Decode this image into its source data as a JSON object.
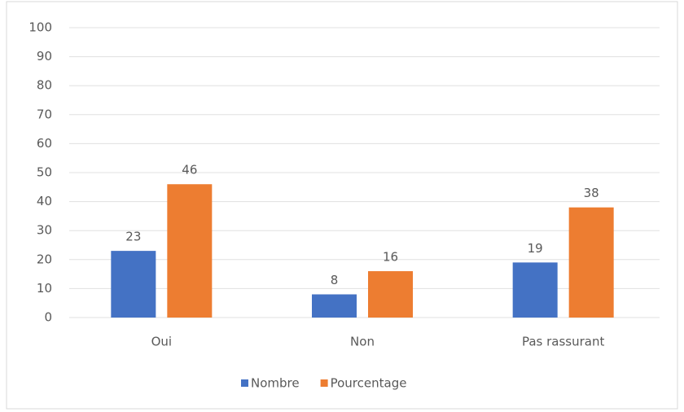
{
  "chart_data": {
    "type": "bar",
    "categories": [
      "Oui",
      "Non",
      "Pas rassurant"
    ],
    "series": [
      {
        "name": "Nombre",
        "color": "#4472c4",
        "values": [
          23,
          8,
          19
        ]
      },
      {
        "name": "Pourcentage",
        "color": "#ed7d31",
        "values": [
          46,
          16,
          38
        ]
      }
    ],
    "ylim": [
      0,
      100
    ],
    "yticks": [
      0,
      10,
      20,
      30,
      40,
      50,
      60,
      70,
      80,
      90,
      100
    ],
    "grid": true,
    "legend": "bottom"
  }
}
